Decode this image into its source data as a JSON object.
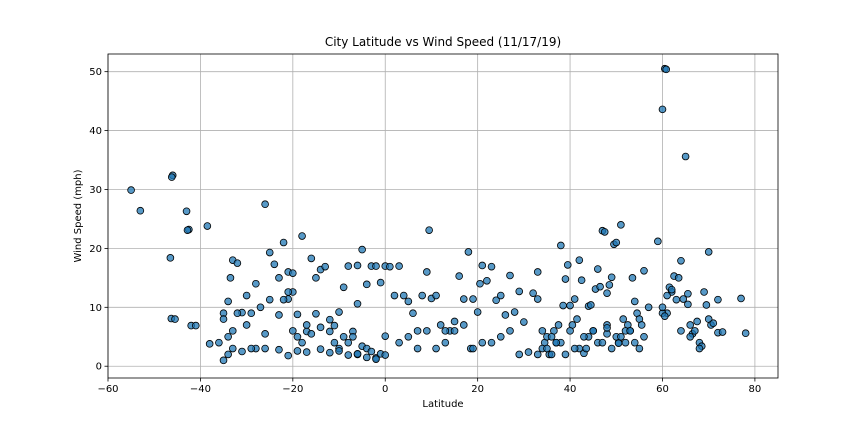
{
  "chart_data": {
    "type": "scatter",
    "title": "City Latitude vs Wind Speed (11/17/19)",
    "xlabel": "Latitude",
    "ylabel": "Wind Speed (mph)",
    "xlim": [
      -60,
      85
    ],
    "ylim": [
      -2,
      53
    ],
    "xticks": [
      -60,
      -40,
      -20,
      0,
      20,
      40,
      60,
      80
    ],
    "yticks": [
      0,
      10,
      20,
      30,
      40,
      50
    ],
    "grid": true,
    "marker": {
      "fill": "#1f77b4",
      "fill_opacity": 0.75,
      "edge": "#000000"
    },
    "series": [
      {
        "x": [
          -55,
          -53,
          -46.5,
          -46,
          -46.2,
          -46.3,
          -45.5,
          -43,
          -42.5,
          -42.8,
          -42,
          -41,
          -38.5,
          -38,
          -36,
          -35,
          -34,
          -33.5,
          -33,
          -32,
          -31,
          -30,
          -28,
          -27,
          -26,
          -25,
          -24,
          -23,
          -22,
          -21,
          -21,
          -20,
          -20,
          -19,
          -18,
          -17,
          -16,
          -15,
          -14,
          -13,
          -12,
          -11,
          -10,
          -9,
          -8,
          -7,
          -6,
          -6,
          -5,
          -4,
          -3,
          -2,
          -1,
          0,
          1,
          2,
          -35,
          -34,
          -33,
          -32,
          -30,
          -29,
          -28,
          -26,
          -25,
          -23,
          -22,
          -21,
          -20,
          -19,
          -18,
          -17,
          -16,
          -15,
          -14,
          -12,
          -11,
          -10,
          -9,
          -8,
          -7,
          -6,
          -5,
          -4,
          -3,
          -2,
          -1,
          0,
          -35,
          -34,
          -33,
          -31,
          -29,
          -26,
          -23,
          -21,
          -19,
          -17,
          -14,
          -12,
          -10,
          -8,
          -6,
          -4,
          -2,
          0,
          3,
          4,
          5,
          6,
          7,
          8,
          9,
          9.5,
          10,
          11,
          12,
          13,
          14,
          15,
          16,
          17,
          18,
          18.5,
          19,
          20,
          20.5,
          21,
          22,
          23,
          24,
          25,
          26,
          27,
          28,
          29,
          30,
          32,
          33,
          3,
          5,
          7,
          9,
          11,
          13,
          15,
          17,
          19,
          21,
          23,
          25,
          27,
          29,
          31,
          33,
          34,
          34.5,
          35,
          35.5,
          36,
          36.5,
          37,
          37.5,
          38,
          38.5,
          39,
          39.5,
          40,
          40.5,
          41,
          41.5,
          42,
          42.5,
          43,
          43.5,
          44,
          44.5,
          45,
          45.5,
          46,
          46.5,
          47,
          47.5,
          48,
          48.5,
          49,
          49.5,
          50,
          50.5,
          51,
          51.5,
          52,
          52.5,
          53,
          53.5,
          54,
          54.5,
          55,
          55.5,
          56,
          57,
          34,
          36,
          38,
          40,
          42,
          44,
          46,
          48,
          50,
          52,
          54,
          56,
          33,
          35,
          37,
          39,
          41,
          43,
          45,
          47,
          49,
          51,
          53,
          55,
          59,
          60,
          60.5,
          60.8,
          61,
          61.5,
          62,
          62.5,
          63,
          63.5,
          64,
          64.5,
          65,
          65.5,
          66,
          66.5,
          67,
          67.5,
          68,
          68.5,
          69,
          69.5,
          70,
          70.5,
          71,
          72,
          73,
          77,
          78,
          60,
          62,
          64,
          66,
          68,
          70,
          72,
          60.5,
          61,
          65.5,
          60,
          50.5,
          48,
          48
        ],
        "y": [
          29.9,
          26.4,
          18.4,
          32.4,
          32.1,
          8.1,
          8,
          26.3,
          23.2,
          23.1,
          6.9,
          6.9,
          23.8,
          3.8,
          4,
          9,
          11,
          15,
          18,
          17.5,
          9.1,
          12,
          3,
          10,
          27.5,
          19.3,
          17.3,
          15,
          21,
          16,
          11.4,
          12.6,
          15.8,
          8.8,
          22.1,
          5.9,
          18.3,
          15,
          16.4,
          16.9,
          5.9,
          6.9,
          9.2,
          13.4,
          17,
          5.9,
          17.1,
          10.6,
          19.8,
          13.9,
          17,
          17,
          14.2,
          17,
          16.9,
          12,
          8,
          5,
          6,
          9,
          7,
          9,
          14,
          5.5,
          11.3,
          8.7,
          11.3,
          12.6,
          6,
          5,
          4,
          7,
          5.5,
          8.9,
          6.6,
          7.9,
          4,
          3,
          5,
          4,
          5,
          2,
          3.4,
          3,
          2.5,
          1.4,
          2.1,
          5.1,
          1,
          2,
          3,
          2.5,
          3,
          3,
          2.8,
          1.8,
          2.6,
          2.4,
          2.9,
          2.3,
          2.6,
          1.9,
          2.1,
          1.5,
          1.2,
          1.9,
          17,
          12,
          11,
          9,
          6,
          12,
          16,
          23.1,
          11.5,
          12,
          7,
          4,
          6,
          7.6,
          15.3,
          11.4,
          19.4,
          3,
          11.4,
          9.2,
          14,
          17.1,
          14.5,
          16.9,
          11.2,
          12,
          8.7,
          15.4,
          9.2,
          12.7,
          7.5,
          12.4,
          16,
          4,
          5,
          3,
          6,
          3,
          6,
          6,
          7,
          3,
          4,
          4,
          5,
          6,
          2,
          2.4,
          11.4,
          6,
          4,
          5,
          2,
          2,
          6,
          4,
          7,
          20.5,
          10.3,
          14.8,
          17.2,
          10.3,
          7,
          11.4,
          8,
          18,
          14.6,
          2.2,
          3,
          10.2,
          10.4,
          6,
          13.1,
          16.5,
          13.5,
          23,
          22.8,
          12.4,
          13.8,
          15.1,
          20.7,
          21,
          4,
          24,
          8,
          4,
          7,
          6,
          15,
          11,
          9,
          8,
          7,
          16.2,
          10,
          3,
          5,
          4,
          6,
          3,
          5,
          4,
          7,
          5,
          6,
          4,
          5,
          2,
          3,
          4,
          2,
          3,
          5,
          6,
          4,
          3,
          5,
          6,
          3,
          21.2,
          43.6,
          50.5,
          50.4,
          9,
          13.4,
          12.6,
          15.3,
          11.3,
          15,
          17.9,
          11.4,
          35.6,
          10.5,
          7,
          5.5,
          6,
          7.6,
          4,
          3.4,
          12.6,
          10.4,
          8,
          7,
          7.3,
          5.7,
          5.8,
          11.5,
          5.6,
          9,
          13,
          6,
          5,
          3,
          19.4,
          11.3,
          8.5,
          12,
          12.3,
          10,
          3.9,
          5.5,
          6.5
        ]
      }
    ]
  }
}
